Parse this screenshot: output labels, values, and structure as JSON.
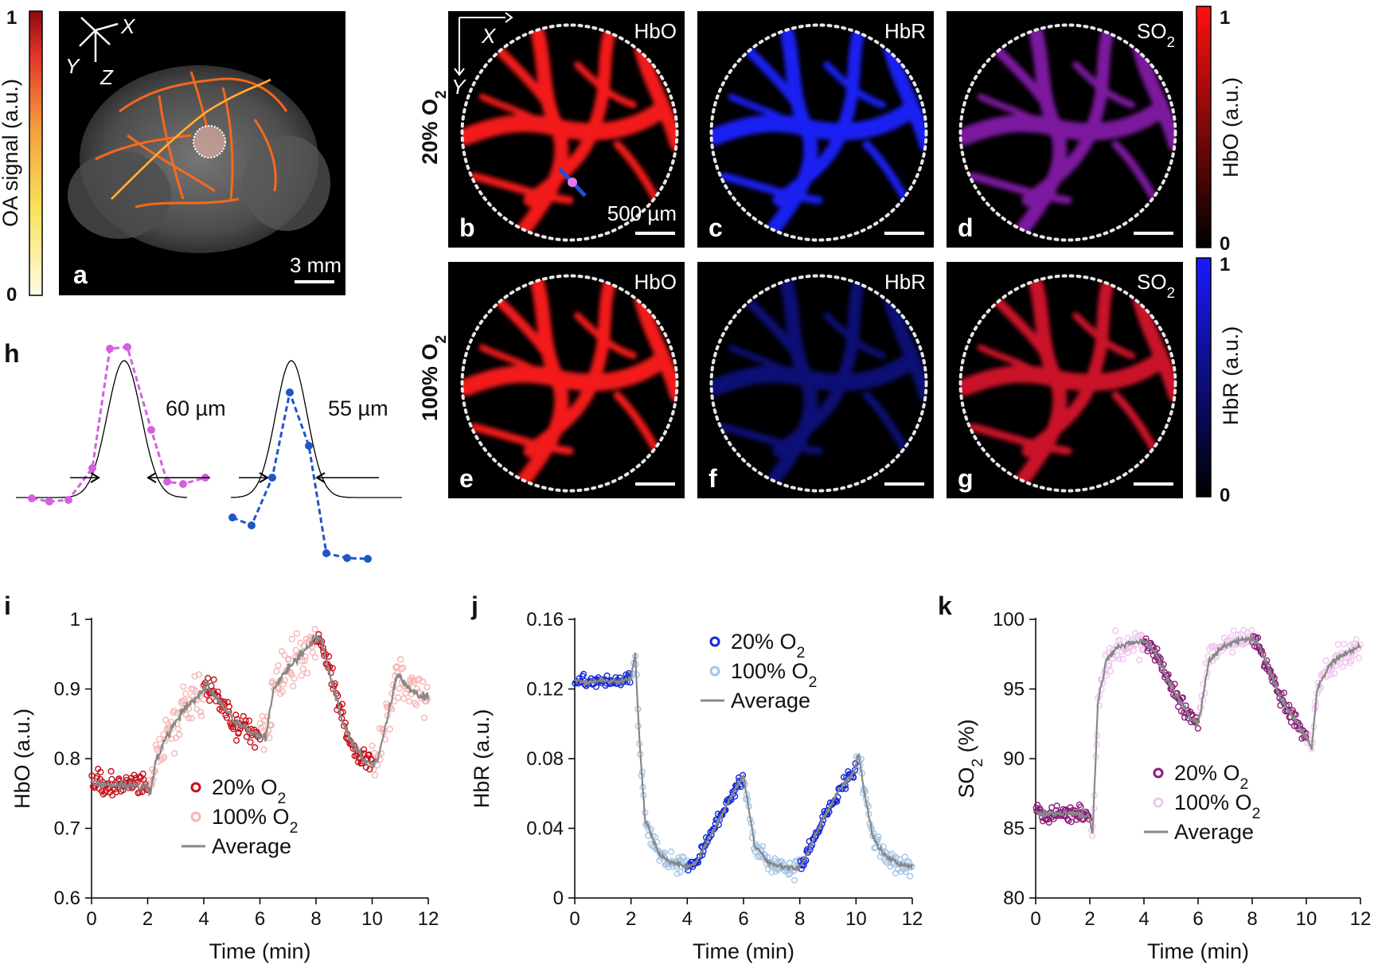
{
  "colors": {
    "hbo_20": "#c8101a",
    "hbo_100": "#f4b6b2",
    "hbr_20": "#1428d8",
    "hbr_100": "#a6c6e6",
    "so2_20": "#8b1a7a",
    "so2_100": "#f0c6ee",
    "average": "#888888",
    "profile_hbo": "#d45fe0",
    "profile_hbr": "#1f56c8"
  },
  "panel_a": {
    "letter": "a",
    "colorbar_label": "OA signal (a.u.)",
    "colorbar_max": "1",
    "colorbar_min": "0",
    "axis_x": "X",
    "axis_y": "Y",
    "axis_z": "Z",
    "scale": "3 mm"
  },
  "row_20": {
    "label": "20% O",
    "sub": "2",
    "maps": [
      {
        "letter": "b",
        "name": "HbO",
        "scale": "500 µm"
      },
      {
        "letter": "c",
        "name": "HbR",
        "scale": ""
      },
      {
        "letter": "d",
        "name": "SO",
        "sub": "2",
        "scale": ""
      }
    ],
    "axis_x": "X",
    "axis_y": "Y"
  },
  "row_100": {
    "label": "100% O",
    "sub": "2",
    "maps": [
      {
        "letter": "e",
        "name": "HbO"
      },
      {
        "letter": "f",
        "name": "HbR"
      },
      {
        "letter": "g",
        "name": "SO",
        "sub": "2"
      }
    ]
  },
  "colorbar_hbo": {
    "label": "HbO (a.u.)",
    "max": "1",
    "min": "0"
  },
  "colorbar_hbr": {
    "label": "HbR (a.u.)",
    "max": "1",
    "min": "0"
  },
  "panel_h": {
    "letter": "h",
    "width_hbo": "60 µm",
    "width_hbr": "55 µm"
  },
  "chart_data": [
    {
      "panel": "i",
      "type": "scatter",
      "xlabel": "Time (min)",
      "ylabel": "HbO (a.u.)",
      "xlim": [
        0,
        12
      ],
      "ylim": [
        0.6,
        1.0
      ],
      "xticks": [
        "0",
        "2",
        "4",
        "6",
        "8",
        "10",
        "12"
      ],
      "yticks": [
        "0.6",
        "0.7",
        "0.8",
        "0.9",
        "1"
      ],
      "legend": [
        {
          "label": "20% O",
          "sub": "2"
        },
        {
          "label": "100% O",
          "sub": "2"
        },
        {
          "label": "Average",
          "sub": ""
        }
      ],
      "average": {
        "x": [
          0,
          0.5,
          1,
          1.5,
          2,
          2.1,
          2.3,
          2.8,
          3.3,
          3.8,
          4.1,
          4.4,
          4.8,
          5.2,
          5.6,
          6.0,
          6.2,
          6.5,
          7.0,
          7.5,
          8.0,
          8.2,
          8.5,
          8.9,
          9.3,
          9.7,
          10.0,
          10.2,
          10.5,
          10.9,
          11.3,
          11.7,
          12
        ],
        "y": [
          0.765,
          0.763,
          0.762,
          0.762,
          0.76,
          0.75,
          0.8,
          0.84,
          0.87,
          0.89,
          0.905,
          0.89,
          0.87,
          0.85,
          0.84,
          0.835,
          0.83,
          0.9,
          0.93,
          0.95,
          0.975,
          0.97,
          0.92,
          0.86,
          0.82,
          0.8,
          0.79,
          0.8,
          0.85,
          0.92,
          0.9,
          0.89,
          0.89
        ]
      },
      "series": [
        {
          "segments": [
            [
              0,
              2
            ],
            [
              4,
              6
            ],
            [
              8,
              10
            ]
          ],
          "noise": 0.018,
          "count": 190
        },
        {
          "segments": [
            [
              2,
              4
            ],
            [
              6,
              8
            ],
            [
              10,
              12
            ]
          ],
          "noise": 0.03,
          "count": 190
        }
      ]
    },
    {
      "panel": "j",
      "type": "scatter",
      "xlabel": "Time (min)",
      "ylabel": "HbR (a.u.)",
      "xlim": [
        0,
        12
      ],
      "ylim": [
        0,
        0.16
      ],
      "xticks": [
        "0",
        "2",
        "4",
        "6",
        "8",
        "10",
        "12"
      ],
      "yticks": [
        "0",
        "0.04",
        "0.08",
        "0.12",
        "0.16"
      ],
      "legend": [
        {
          "label": "20% O",
          "sub": "2"
        },
        {
          "label": "100% O",
          "sub": "2"
        },
        {
          "label": "Average",
          "sub": ""
        }
      ],
      "average": {
        "x": [
          0,
          0.5,
          1,
          1.5,
          2,
          2.15,
          2.3,
          2.5,
          3.0,
          3.5,
          4.0,
          4.3,
          4.8,
          5.3,
          5.8,
          6.0,
          6.1,
          6.4,
          6.9,
          7.4,
          7.9,
          8.1,
          8.4,
          8.9,
          9.4,
          9.9,
          10.1,
          10.3,
          10.6,
          11.0,
          11.5,
          12
        ],
        "y": [
          0.125,
          0.124,
          0.125,
          0.124,
          0.126,
          0.14,
          0.09,
          0.045,
          0.025,
          0.02,
          0.018,
          0.02,
          0.035,
          0.05,
          0.065,
          0.07,
          0.06,
          0.03,
          0.02,
          0.018,
          0.017,
          0.02,
          0.03,
          0.048,
          0.062,
          0.072,
          0.082,
          0.06,
          0.035,
          0.025,
          0.02,
          0.018
        ]
      },
      "series": [
        {
          "segments": [
            [
              0,
              2
            ],
            [
              4,
              6
            ],
            [
              8,
              10
            ]
          ],
          "noise": 0.004,
          "count": 190
        },
        {
          "segments": [
            [
              2,
              4
            ],
            [
              6,
              8
            ],
            [
              10,
              12
            ]
          ],
          "noise": 0.006,
          "count": 190
        }
      ]
    },
    {
      "panel": "k",
      "type": "scatter",
      "xlabel": "Time (min)",
      "ylabel": "SO",
      "ylabel_sub": "2",
      "ylabel_tail": " (%)",
      "xlim": [
        0,
        12
      ],
      "ylim": [
        80,
        100
      ],
      "xticks": [
        "0",
        "2",
        "4",
        "6",
        "8",
        "10",
        "12"
      ],
      "yticks": [
        "80",
        "85",
        "90",
        "95",
        "100"
      ],
      "legend": [
        {
          "label": "20% O",
          "sub": "2"
        },
        {
          "label": "100% O",
          "sub": "2"
        },
        {
          "label": "Average",
          "sub": ""
        }
      ],
      "average": {
        "x": [
          0,
          0.5,
          1,
          1.5,
          2,
          2.1,
          2.3,
          2.6,
          3.0,
          3.5,
          4.0,
          4.3,
          4.7,
          5.2,
          5.7,
          6.0,
          6.1,
          6.4,
          6.9,
          7.4,
          7.9,
          8.2,
          8.6,
          9.0,
          9.5,
          10.0,
          10.2,
          10.4,
          10.8,
          11.2,
          11.7,
          12
        ],
        "y": [
          86.2,
          86.0,
          86.1,
          86.0,
          85.8,
          84.5,
          94.0,
          97.0,
          98.0,
          98.3,
          98.4,
          98.0,
          96.5,
          94.5,
          93.0,
          92.5,
          93.5,
          97.0,
          98.0,
          98.4,
          98.6,
          98.4,
          96.5,
          94.5,
          93.0,
          91.5,
          90.8,
          95.0,
          96.5,
          97.3,
          97.8,
          98.2
        ]
      },
      "series": [
        {
          "segments": [
            [
              0,
              2
            ],
            [
              4,
              6
            ],
            [
              8,
              10
            ]
          ],
          "noise": 0.6,
          "count": 190
        },
        {
          "segments": [
            [
              2,
              4
            ],
            [
              6,
              8
            ],
            [
              10,
              12
            ]
          ],
          "noise": 0.9,
          "count": 190
        }
      ]
    }
  ]
}
